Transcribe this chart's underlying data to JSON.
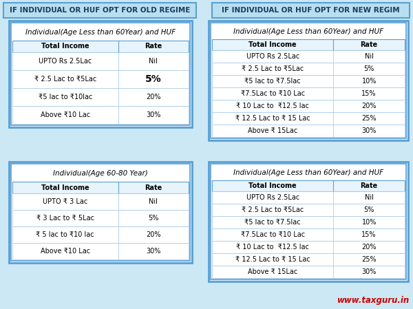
{
  "bg_color": "#cce8f4",
  "header_bg": "#b8dff0",
  "header_border": "#5a9fd4",
  "header_text_old": "IF INDIVIDUAL OR HUF OPT FOR OLD REGIME",
  "header_text_new": "IF INDIVIDUAL OR HUF OPT FOR NEW REGIM",
  "header_text_color": "#1a3a5c",
  "table_outer_bg": "#ddeefa",
  "table_outer_border": "#5a9fd4",
  "table_inner_bg": "#ffffff",
  "table_inner_border": "#5a9fd4",
  "header_row_bg": "#e8f4fc",
  "header_row_border": "#5a9fd4",
  "row_bg": "#ffffff",
  "row_border": "#aacce8",
  "watermark": "www.taxguru.in",
  "watermark_color": "#cc0000",
  "table1_title": "Individual(Age Less than 60Year) and HUF",
  "table1_cols": [
    "Total Income",
    "Rate"
  ],
  "table1_rows": [
    [
      "UPTO Rs 2.5Lac",
      "Nil"
    ],
    [
      "₹ 2.5 Lac to ₹5Lac",
      "5%"
    ],
    [
      "₹5 lac to ₹10lac",
      "20%"
    ],
    [
      "Above ₹10 Lac",
      "30%"
    ]
  ],
  "table1_bold_row": 1,
  "table2_title": "Individual(Age 60-80 Year)",
  "table2_cols": [
    "Total Income",
    "Rate"
  ],
  "table2_rows": [
    [
      "UPTO ₹ 3 Lac",
      "Nil"
    ],
    [
      "₹ 3 Lac to ₹ 5Lac",
      "5%"
    ],
    [
      "₹ 5 lac to ₹10 lac",
      "20%"
    ],
    [
      "Above ₹10 Lac",
      "30%"
    ]
  ],
  "table3_title": "Individual(Age Less than 60Year) and HUF",
  "table3_cols": [
    "Total Income",
    "Rate"
  ],
  "table3_rows": [
    [
      "UPTO Rs 2.5Lac",
      "Nil"
    ],
    [
      "₹ 2.5 Lac to ₹5Lac",
      "5%"
    ],
    [
      "₹5 lac to ₹7.5lac",
      "10%"
    ],
    [
      "₹7.5Lac to ₹10 Lac",
      "15%"
    ],
    [
      "₹ 10 Lac to  ₹12.5 lac",
      "20%"
    ],
    [
      "₹ 12.5 Lac to ₹ 15 Lac",
      "25%"
    ],
    [
      "Above ₹ 15Lac",
      "30%"
    ]
  ],
  "table4_title": "Individual(Age Less than 60Year) and HUF",
  "table4_cols": [
    "Total Income",
    "Rate"
  ],
  "table4_rows": [
    [
      "UPTO Rs 2.5Lac",
      "Nil"
    ],
    [
      "₹ 2.5 Lac to ₹5Lac",
      "5%"
    ],
    [
      "₹5 lac to ₹7.5lac",
      "10%"
    ],
    [
      "₹7.5Lac to ₹10 Lac",
      "15%"
    ],
    [
      "₹ 10 Lac to  ₹12.5 lac",
      "20%"
    ],
    [
      "₹ 12.5 Lac to ₹ 15 Lac",
      "25%"
    ],
    [
      "Above ₹ 15Lac",
      "30%"
    ]
  ]
}
